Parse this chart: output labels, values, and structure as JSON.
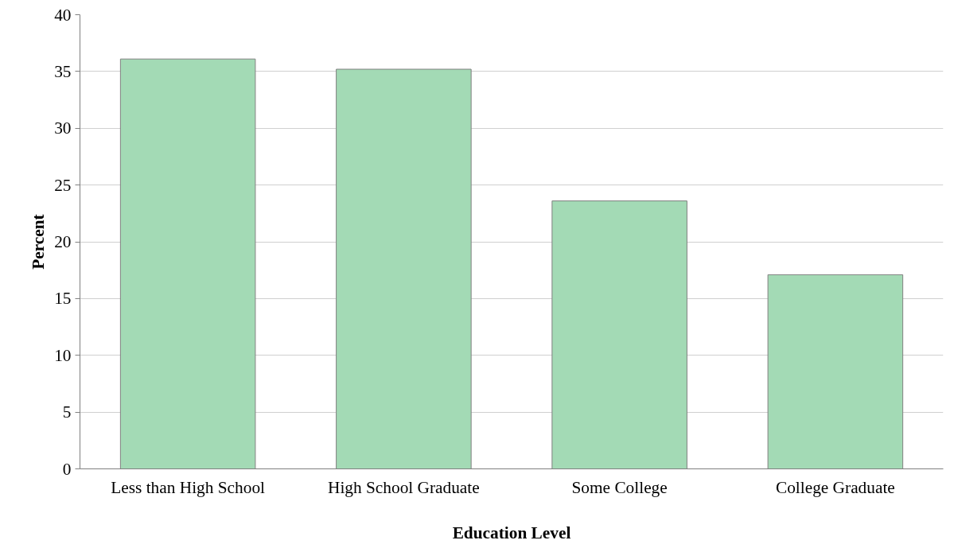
{
  "chart_data": {
    "type": "bar",
    "xlabel": "Education Level",
    "ylabel": "Percent",
    "categories": [
      "Less than High School",
      "High School Graduate",
      "Some College",
      "College Graduate"
    ],
    "values": [
      36.1,
      35.2,
      23.6,
      17.1
    ],
    "color": "#a3dab5",
    "ylim": [
      0,
      40
    ],
    "yticks": [
      0,
      5,
      10,
      15,
      20,
      25,
      30,
      35,
      40
    ],
    "grid": "y"
  }
}
